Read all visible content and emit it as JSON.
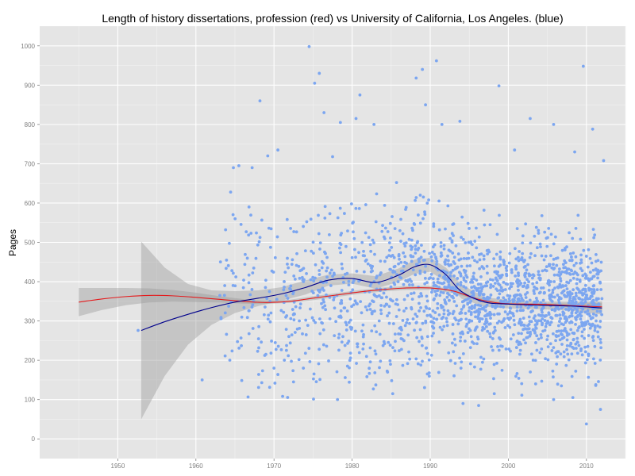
{
  "chart_data": {
    "type": "scatter",
    "title": "Length of history dissertations, profession (red) vs University of California, Los Angeles. (blue)",
    "xlabel": "",
    "ylabel": "Pages",
    "xlim": [
      1940,
      2015
    ],
    "ylim": [
      -50,
      1050
    ],
    "x_ticks": [
      1950,
      1960,
      1970,
      1980,
      1990,
      2000,
      2010
    ],
    "y_ticks": [
      0,
      100,
      200,
      300,
      400,
      500,
      600,
      700,
      800,
      900,
      1000
    ],
    "grid": true,
    "legend": "none",
    "colors": {
      "panel": "#e5e5e5",
      "grid_major": "#ffffff",
      "grid_minor": "#f2f2f2",
      "points": "#7ca6f0",
      "band": "#999999",
      "profession_line": "#e41a1c",
      "ucla_line": "#00008b"
    },
    "series": [
      {
        "kind": "smooth",
        "color": "#e41a1c",
        "x": [
          1945,
          1948,
          1951,
          1954,
          1957,
          1960,
          1963,
          1966,
          1969,
          1972,
          1975,
          1978,
          1981,
          1984,
          1987,
          1990,
          1993,
          1996,
          1999,
          2002,
          2005,
          2008,
          2012
        ],
        "y": [
          348,
          356,
          362,
          365,
          364,
          360,
          355,
          350,
          347,
          350,
          358,
          366,
          374,
          380,
          384,
          384,
          376,
          356,
          345,
          343,
          342,
          339,
          336
        ],
        "band_lo": [
          312,
          328,
          340,
          347,
          349,
          348,
          347,
          344,
          343,
          346,
          353,
          361,
          369,
          375,
          379,
          379,
          371,
          352,
          342,
          340,
          339,
          334,
          326
        ],
        "band_hi": [
          384,
          384,
          384,
          383,
          379,
          372,
          363,
          356,
          351,
          354,
          363,
          371,
          379,
          385,
          389,
          389,
          381,
          360,
          348,
          346,
          345,
          344,
          346
        ]
      },
      {
        "kind": "smooth",
        "color": "#00008b",
        "x": [
          1953,
          1956,
          1959,
          1962,
          1965,
          1968,
          1971,
          1974,
          1977,
          1980,
          1983,
          1986,
          1988,
          1990,
          1992,
          1994,
          1997,
          2000,
          2004,
          2008,
          2012
        ],
        "y": [
          276,
          298,
          317,
          334,
          348,
          358,
          369,
          385,
          404,
          408,
          398,
          417,
          438,
          443,
          418,
          375,
          348,
          343,
          340,
          338,
          333
        ],
        "band_lo": [
          50,
          160,
          240,
          290,
          320,
          338,
          352,
          367,
          390,
          395,
          382,
          400,
          420,
          425,
          400,
          357,
          336,
          332,
          330,
          327,
          316
        ],
        "band_hi": [
          502,
          436,
          394,
          378,
          376,
          378,
          386,
          403,
          418,
          421,
          414,
          434,
          456,
          461,
          436,
          393,
          360,
          354,
          350,
          349,
          350
        ]
      }
    ],
    "scatter_points": [
      [
        1952.6,
        276
      ],
      [
        1960.8,
        150
      ],
      [
        1963.8,
        532
      ],
      [
        1964.8,
        690
      ],
      [
        1965.5,
        695
      ],
      [
        1966.8,
        590
      ],
      [
        1967.2,
        690
      ],
      [
        1968.2,
        860
      ],
      [
        1969.2,
        720
      ],
      [
        1970.5,
        735
      ],
      [
        1970,
        180
      ],
      [
        1972.5,
        145
      ],
      [
        1974.5,
        998
      ],
      [
        1975.2,
        905
      ],
      [
        1975.8,
        930
      ],
      [
        1976.4,
        830
      ],
      [
        1977.5,
        718
      ],
      [
        1978.5,
        805
      ],
      [
        1980.5,
        815
      ],
      [
        1981,
        875
      ],
      [
        1982.8,
        800
      ],
      [
        1985.2,
        115
      ],
      [
        1988.2,
        918
      ],
      [
        1989,
        940
      ],
      [
        1989.4,
        850
      ],
      [
        1990.8,
        962
      ],
      [
        1991.5,
        800
      ],
      [
        1993.8,
        808
      ],
      [
        1994.2,
        90
      ],
      [
        1996.2,
        85
      ],
      [
        1998.2,
        115
      ],
      [
        1998.8,
        898
      ],
      [
        2000.8,
        735
      ],
      [
        2002.8,
        815
      ],
      [
        2005.8,
        800
      ],
      [
        2005.8,
        100
      ],
      [
        2008.5,
        730
      ],
      [
        2009.6,
        948
      ],
      [
        2010,
        38
      ],
      [
        2010.8,
        788
      ],
      [
        2011.8,
        75
      ],
      [
        2012.2,
        708
      ],
      [
        2011.2,
        138
      ],
      [
        2006.8,
        135
      ],
      [
        2003.5,
        140
      ]
    ],
    "random_cloud": {
      "count": 1900,
      "seed": 12345,
      "start_year": 1963,
      "end_year": 2012,
      "year_weight": [
        [
          1963,
          0.25
        ],
        [
          1968,
          0.5
        ],
        [
          1972,
          0.8
        ],
        [
          1980,
          1.0
        ],
        [
          1988,
          1.4
        ],
        [
          1995,
          2.0
        ],
        [
          2002,
          2.1
        ],
        [
          2008,
          2.2
        ],
        [
          2012,
          2.2
        ]
      ],
      "spread_early": 120,
      "spread_late": 82,
      "min_y": 100,
      "max_y": 760
    }
  }
}
